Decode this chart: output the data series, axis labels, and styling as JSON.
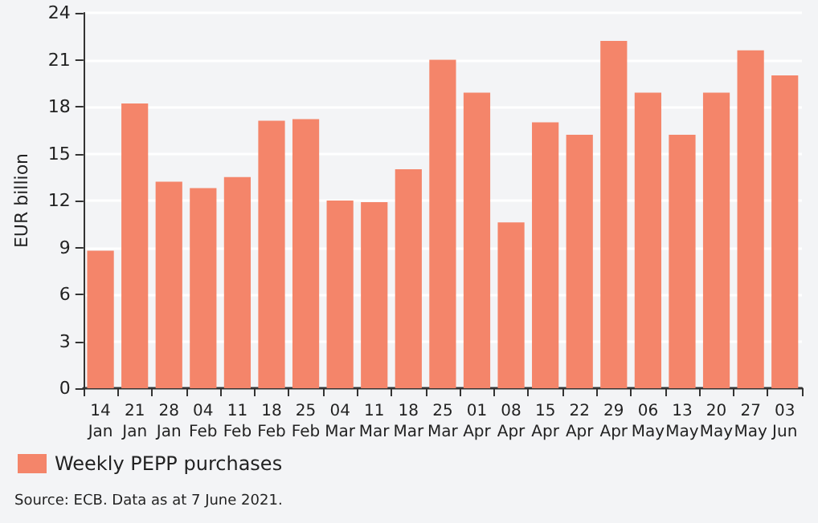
{
  "chart_data": {
    "type": "bar",
    "ylabel": "EUR billion",
    "categories": [
      "14\nJan",
      "21\nJan",
      "28\nJan",
      "04\nFeb",
      "11\nFeb",
      "18\nFeb",
      "25\nFeb",
      "04\nMar",
      "11\nMar",
      "18\nMar",
      "25\nMar",
      "01\nApr",
      "08\nApr",
      "15\nApr",
      "22\nApr",
      "29\nApr",
      "06\nMay",
      "13\nMay",
      "20\nMay",
      "27\nMay",
      "03\nJun"
    ],
    "series": [
      {
        "name": "Weekly PEPP purchases",
        "color": "#f4856a",
        "values": [
          8.8,
          18.2,
          13.2,
          12.8,
          13.5,
          17.1,
          17.2,
          12.0,
          11.9,
          14.0,
          21.0,
          18.9,
          10.6,
          17.0,
          16.2,
          22.2,
          18.9,
          16.2,
          18.9,
          21.6,
          20.0
        ]
      }
    ],
    "ylim": [
      0,
      24
    ],
    "yticks": [
      0,
      3,
      6,
      9,
      12,
      15,
      18,
      21,
      24
    ],
    "grid": "y",
    "legend": "bottom left",
    "annotations": [
      "Source: ECB. Data as at 7 June 2021."
    ]
  }
}
